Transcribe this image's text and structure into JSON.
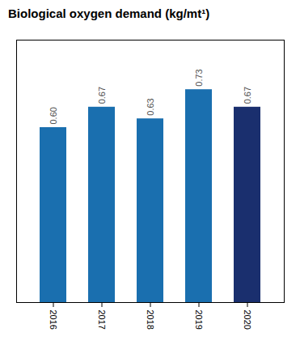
{
  "chart_data": {
    "type": "bar",
    "title": "Biological oxygen demand (kg/mt¹)",
    "categories": [
      "2016",
      "2017",
      "2018",
      "2019",
      "2020"
    ],
    "values": [
      0.6,
      0.67,
      0.63,
      0.73,
      0.67
    ],
    "value_labels": [
      "0.60",
      "0.67",
      "0.63",
      "0.73",
      "0.67"
    ],
    "colors": [
      "#1a6faf",
      "#1a6faf",
      "#1a6faf",
      "#1a6faf",
      "#1a2f6e"
    ],
    "ylim": [
      0,
      0.9
    ],
    "grid": false,
    "data_labels": true,
    "tick_labels": "x"
  }
}
